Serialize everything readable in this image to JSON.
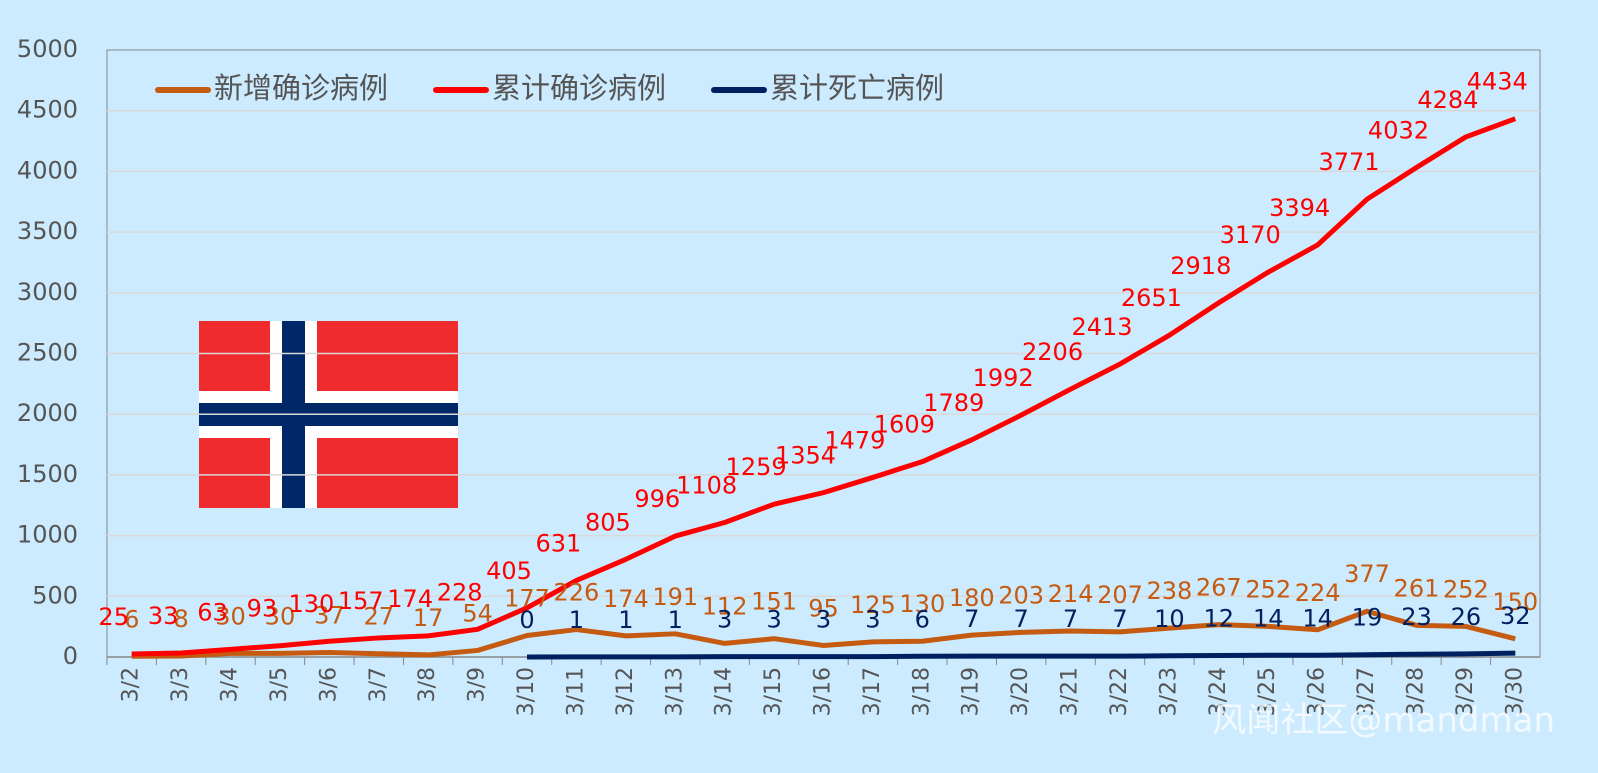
{
  "chart_data": {
    "type": "line",
    "categories": [
      "3/2",
      "3/3",
      "3/4",
      "3/5",
      "3/6",
      "3/7",
      "3/8",
      "3/9",
      "3/10",
      "3/11",
      "3/12",
      "3/13",
      "3/14",
      "3/15",
      "3/16",
      "3/17",
      "3/18",
      "3/19",
      "3/20",
      "3/21",
      "3/22",
      "3/23",
      "3/24",
      "3/25",
      "3/26",
      "3/27",
      "3/28",
      "3/29",
      "3/30"
    ],
    "series": [
      {
        "name": "新增确诊病例",
        "color": "#c55a11",
        "values": [
          6,
          8,
          30,
          30,
          37,
          27,
          17,
          54,
          177,
          226,
          174,
          191,
          112,
          151,
          95,
          125,
          130,
          180,
          203,
          214,
          207,
          238,
          267,
          252,
          224,
          377,
          261,
          252,
          150
        ]
      },
      {
        "name": "累计确诊病例",
        "color": "#ff0000",
        "values": [
          25,
          33,
          63,
          93,
          130,
          157,
          174,
          228,
          405,
          631,
          805,
          996,
          1108,
          1259,
          1354,
          1479,
          1609,
          1789,
          1992,
          2206,
          2413,
          2651,
          2918,
          3170,
          3394,
          3771,
          4032,
          4284,
          4434
        ]
      },
      {
        "name": "累计死亡病例",
        "color": "#002060",
        "values": [
          null,
          null,
          null,
          null,
          null,
          null,
          null,
          null,
          0,
          1,
          1,
          1,
          3,
          3,
          3,
          3,
          6,
          7,
          7,
          7,
          7,
          10,
          12,
          14,
          14,
          19,
          23,
          26,
          32
        ]
      }
    ],
    "ylim": [
      0,
      5000
    ],
    "yticks": [
      0,
      500,
      1000,
      1500,
      2000,
      2500,
      3000,
      3500,
      4000,
      4500,
      5000
    ],
    "grid": true,
    "legend": "top",
    "watermark": "风闻社区@mandman"
  }
}
